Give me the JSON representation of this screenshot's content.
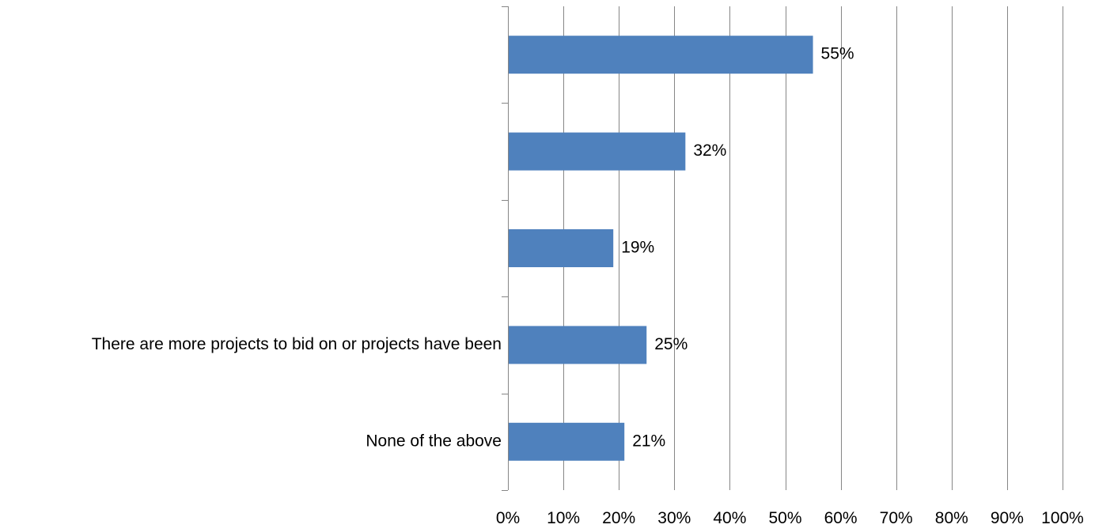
{
  "chart_data": {
    "type": "bar",
    "orientation": "horizontal",
    "categories": [
      "",
      "",
      "",
      "There are more projects to bid on or projects have been",
      "None of the above"
    ],
    "values": [
      55,
      32,
      19,
      25,
      21
    ],
    "data_labels": [
      "55%",
      "32%",
      "19%",
      "25%",
      "21%"
    ],
    "xlim": [
      0,
      100
    ],
    "x_ticks": [
      "0%",
      "10%",
      "20%",
      "30%",
      "40%",
      "50%",
      "60%",
      "70%",
      "80%",
      "90%",
      "100%"
    ],
    "grid": "vertical",
    "bar_color": "#4f81bd",
    "grid_color": "#868686"
  }
}
